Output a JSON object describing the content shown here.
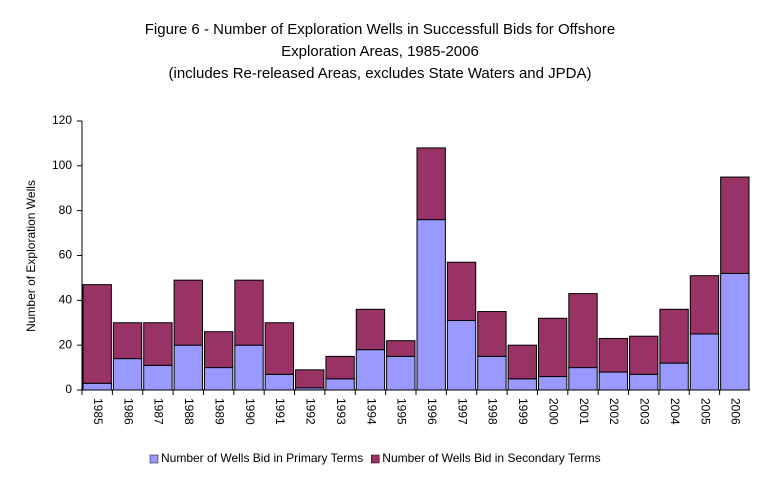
{
  "chart_data": {
    "type": "stacked_bar",
    "title": [
      "Figure 6 - Number of Exploration Wells in Successfull Bids for Offshore",
      "Exploration Areas, 1985-2006",
      "(includes Re-released Areas, excludes State Waters and JPDA)"
    ],
    "y_label": "Number of Exploration Wells",
    "categories": [
      "1985",
      "1986",
      "1987",
      "1988",
      "1989",
      "1990",
      "1991",
      "1992",
      "1993",
      "1994",
      "1995",
      "1996",
      "1997",
      "1998",
      "1999",
      "2000",
      "2001",
      "2002",
      "2003",
      "2004",
      "2005",
      "2006"
    ],
    "series": [
      {
        "name": "Number of Wells Bid in Primary Terms",
        "color": "#9999ff",
        "values": [
          3,
          14,
          11,
          20,
          10,
          20,
          7,
          1,
          5,
          18,
          15,
          76,
          31,
          15,
          5,
          6,
          10,
          8,
          7,
          12,
          25,
          52
        ]
      },
      {
        "name": "Number of Wells Bid in Secondary Terms",
        "color": "#993366",
        "values": [
          44,
          16,
          19,
          29,
          16,
          29,
          23,
          8,
          10,
          18,
          7,
          32,
          26,
          20,
          15,
          26,
          33,
          15,
          17,
          24,
          26,
          43
        ]
      }
    ],
    "ylim": [
      0,
      120
    ],
    "yticks": [
      0,
      20,
      40,
      60,
      80,
      100,
      120
    ],
    "grid": false,
    "legend": "bottom"
  }
}
